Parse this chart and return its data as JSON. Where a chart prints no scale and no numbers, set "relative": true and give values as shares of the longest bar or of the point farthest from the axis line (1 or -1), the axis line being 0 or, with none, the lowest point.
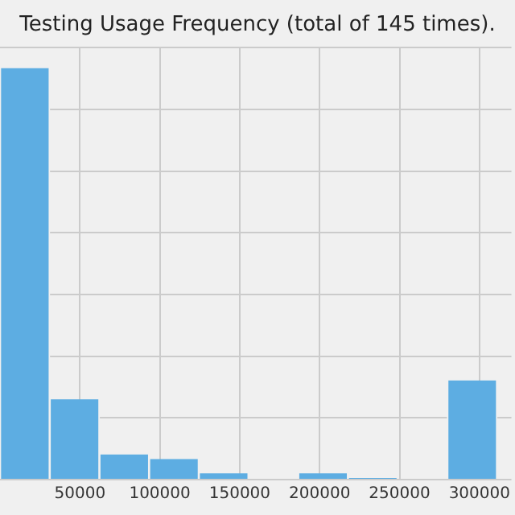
{
  "chart_data": {
    "type": "bar",
    "title": "Testing Usage Frequency (total of 145 times).",
    "x": [
      15550,
      46650,
      77750,
      108850,
      139950,
      171050,
      202150,
      233250,
      264350,
      295450
    ],
    "values": [
      1,
      0.195,
      0.061,
      0.05,
      0.015,
      0,
      0.015,
      0.004,
      0,
      0.241
    ],
    "relative": true,
    "color": "#5dade2",
    "xlim": [
      0,
      320000
    ],
    "xticks": [
      50000,
      100000,
      150000,
      200000,
      250000,
      300000
    ],
    "grid": true
  }
}
